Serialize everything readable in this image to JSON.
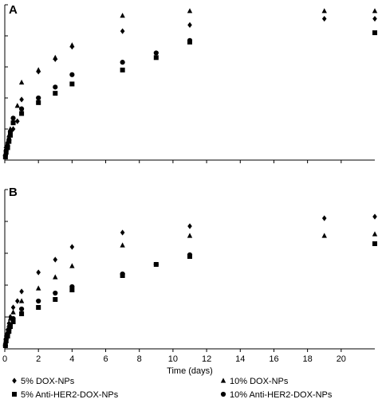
{
  "chart_data": {
    "type": "scatter",
    "xlabel": "Time (days)",
    "xlim": [
      0,
      22
    ],
    "xticks": [
      0,
      2,
      4,
      6,
      8,
      10,
      12,
      14,
      16,
      18,
      20
    ],
    "ylim": [
      0,
      100
    ],
    "y_tick_values": [
      0,
      20,
      40,
      60,
      80,
      100
    ],
    "y_tick_labels_visible": false,
    "grid": false,
    "legend": {
      "position": "bottom",
      "columns": 2,
      "entries": [
        {
          "label": "5% DOX-NPs",
          "marker": "diamond"
        },
        {
          "label": "10% DOX-NPs",
          "marker": "triangle"
        },
        {
          "label": "5% Anti-HER2-DOX-NPs",
          "marker": "square"
        },
        {
          "label": "10% Anti-HER2-DOX-NPs",
          "marker": "circle"
        }
      ]
    },
    "panels": [
      {
        "label": "A",
        "series": [
          {
            "name": "5% DOX-NPs",
            "marker": "diamond",
            "points": [
              [
                0.04,
                3
              ],
              [
                0.08,
                7
              ],
              [
                0.17,
                10
              ],
              [
                0.25,
                14
              ],
              [
                0.33,
                17
              ],
              [
                0.5,
                20
              ],
              [
                0.75,
                25
              ],
              [
                1,
                39
              ],
              [
                2,
                57
              ],
              [
                3,
                65
              ],
              [
                4,
                73
              ],
              [
                7,
                83
              ],
              [
                11,
                87
              ],
              [
                19,
                91
              ],
              [
                22,
                91
              ]
            ]
          },
          {
            "name": "10% DOX-NPs",
            "marker": "triangle",
            "points": [
              [
                0.04,
                4
              ],
              [
                0.08,
                9
              ],
              [
                0.17,
                12
              ],
              [
                0.25,
                16
              ],
              [
                0.33,
                20
              ],
              [
                0.5,
                25
              ],
              [
                0.75,
                35
              ],
              [
                1,
                50
              ],
              [
                2,
                58
              ],
              [
                3,
                66
              ],
              [
                4,
                74
              ],
              [
                7,
                93
              ],
              [
                11,
                96
              ],
              [
                19,
                96
              ],
              [
                22,
                96
              ]
            ]
          },
          {
            "name": "5% Anti-HER2-DOX-NPs",
            "marker": "square",
            "points": [
              [
                0.04,
                2
              ],
              [
                0.08,
                5
              ],
              [
                0.17,
                8
              ],
              [
                0.25,
                12
              ],
              [
                0.33,
                16
              ],
              [
                0.5,
                24
              ],
              [
                1,
                30
              ],
              [
                2,
                37
              ],
              [
                3,
                43
              ],
              [
                4,
                49
              ],
              [
                7,
                58
              ],
              [
                9,
                66
              ],
              [
                11,
                76
              ],
              [
                22,
                82
              ]
            ]
          },
          {
            "name": "10% Anti-HER2-DOX-NPs",
            "marker": "circle",
            "points": [
              [
                0.04,
                3
              ],
              [
                0.08,
                6
              ],
              [
                0.17,
                9
              ],
              [
                0.25,
                13
              ],
              [
                0.33,
                18
              ],
              [
                0.5,
                27
              ],
              [
                1,
                33
              ],
              [
                2,
                40
              ],
              [
                3,
                47
              ],
              [
                4,
                55
              ],
              [
                7,
                63
              ],
              [
                9,
                69
              ],
              [
                11,
                77
              ]
            ]
          }
        ]
      },
      {
        "label": "B",
        "series": [
          {
            "name": "5% DOX-NPs",
            "marker": "diamond",
            "points": [
              [
                0.04,
                4
              ],
              [
                0.08,
                8
              ],
              [
                0.17,
                12
              ],
              [
                0.25,
                16
              ],
              [
                0.33,
                20
              ],
              [
                0.5,
                26
              ],
              [
                0.75,
                30
              ],
              [
                1,
                36
              ],
              [
                2,
                48
              ],
              [
                3,
                56
              ],
              [
                4,
                64
              ],
              [
                7,
                73
              ],
              [
                11,
                77
              ],
              [
                19,
                82
              ],
              [
                22,
                83
              ]
            ]
          },
          {
            "name": "10% DOX-NPs",
            "marker": "triangle",
            "points": [
              [
                0.04,
                3
              ],
              [
                0.08,
                7
              ],
              [
                0.17,
                11
              ],
              [
                0.25,
                15
              ],
              [
                0.33,
                19
              ],
              [
                0.5,
                23
              ],
              [
                1,
                30
              ],
              [
                2,
                38
              ],
              [
                3,
                45
              ],
              [
                4,
                52
              ],
              [
                7,
                65
              ],
              [
                11,
                71
              ],
              [
                19,
                71
              ],
              [
                22,
                72
              ]
            ]
          },
          {
            "name": "5% Anti-HER2-DOX-NPs",
            "marker": "square",
            "points": [
              [
                0.04,
                2
              ],
              [
                0.08,
                5
              ],
              [
                0.17,
                8
              ],
              [
                0.25,
                11
              ],
              [
                0.33,
                14
              ],
              [
                0.5,
                17
              ],
              [
                1,
                22
              ],
              [
                2,
                26
              ],
              [
                3,
                31
              ],
              [
                4,
                37
              ],
              [
                7,
                46
              ],
              [
                9,
                53
              ],
              [
                11,
                58
              ],
              [
                22,
                66
              ]
            ]
          },
          {
            "name": "10% Anti-HER2-DOX-NPs",
            "marker": "circle",
            "points": [
              [
                0.04,
                2
              ],
              [
                0.08,
                6
              ],
              [
                0.17,
                9
              ],
              [
                0.25,
                12
              ],
              [
                0.33,
                15
              ],
              [
                0.5,
                19
              ],
              [
                1,
                25
              ],
              [
                2,
                30
              ],
              [
                3,
                35
              ],
              [
                4,
                39
              ],
              [
                7,
                47
              ],
              [
                9,
                53
              ],
              [
                11,
                59
              ]
            ]
          }
        ]
      }
    ]
  }
}
